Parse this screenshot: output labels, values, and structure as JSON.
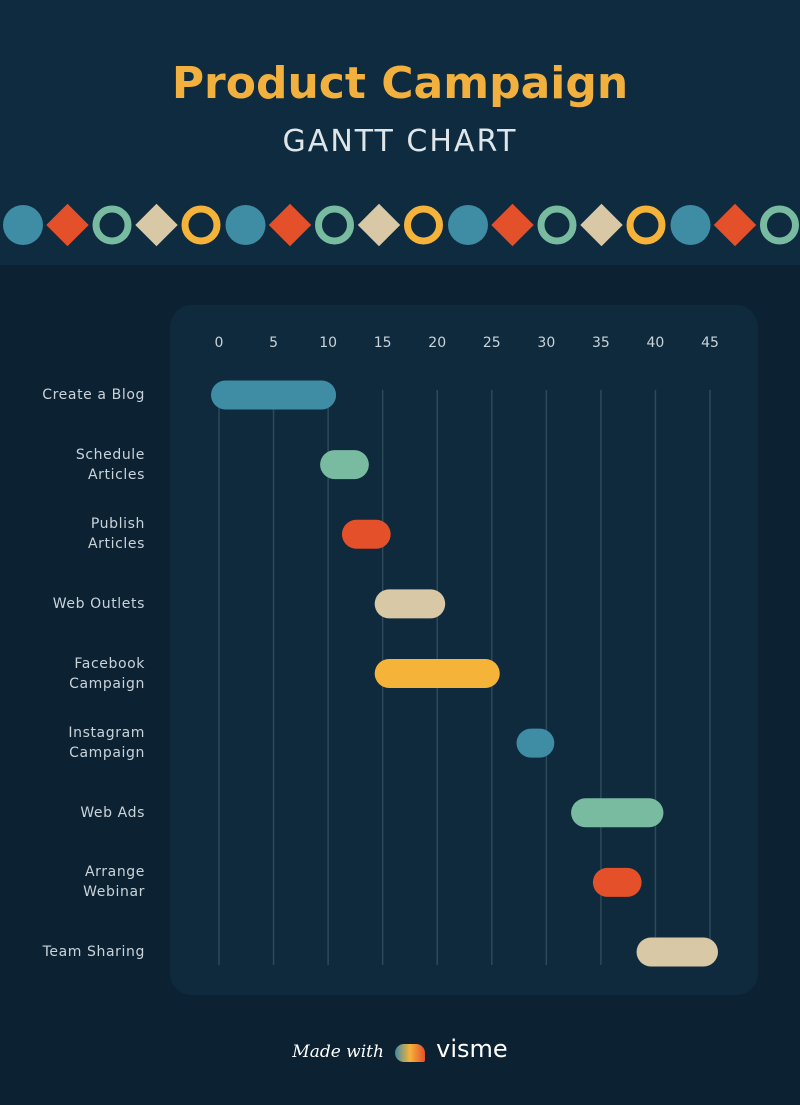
{
  "chart_data": {
    "type": "gantt",
    "title": "Product Campaign",
    "subtitle": "GANTT CHART",
    "tasks": [
      {
        "name": "Create a Blog",
        "start": 0,
        "end": 10,
        "color": "#3f8ca5"
      },
      {
        "name": "Schedule\nArticles",
        "start": 10,
        "end": 13,
        "color": "#79bba0"
      },
      {
        "name": "Publish\nArticles",
        "start": 12,
        "end": 15,
        "color": "#e4502a"
      },
      {
        "name": "Web Outlets",
        "start": 15,
        "end": 20,
        "color": "#d8c8a6"
      },
      {
        "name": "Facebook\nCampaign",
        "start": 15,
        "end": 25,
        "color": "#f6b33a"
      },
      {
        "name": "Instagram\nCampaign",
        "start": 28,
        "end": 30,
        "color": "#3f8ca5"
      },
      {
        "name": "Web Ads",
        "start": 33,
        "end": 40,
        "color": "#79bba0"
      },
      {
        "name": "Arrange\nWebinar",
        "start": 35,
        "end": 38,
        "color": "#e4502a"
      },
      {
        "name": "Team Sharing",
        "start": 39,
        "end": 45,
        "color": "#d8c8a6"
      }
    ],
    "xlim": [
      0,
      45
    ],
    "xticks": [
      0,
      5,
      10,
      15,
      20,
      25,
      30,
      35,
      40,
      45
    ],
    "grid": true
  },
  "footer": {
    "made_with": "Made with",
    "brand": "visme"
  }
}
